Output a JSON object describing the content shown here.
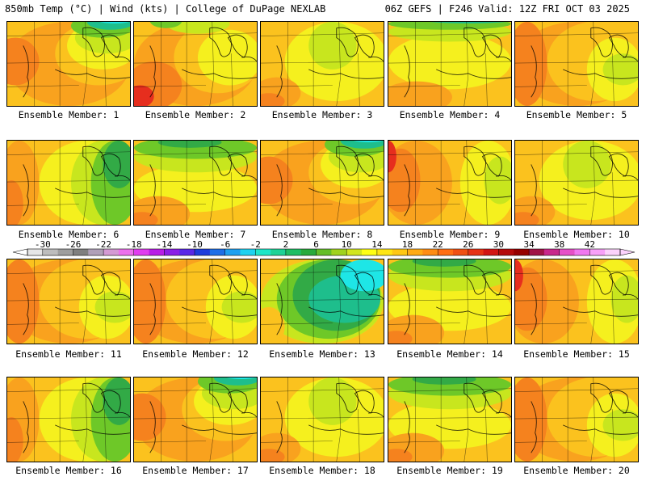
{
  "header": {
    "left": "850mb Temp (°C) | Wind (kts) | College of DuPage NEXLAB",
    "right": "06Z GEFS | F246 Valid: 12Z FRI OCT 03 2025"
  },
  "panels": [
    {
      "label": "Ensemble Member: 1",
      "theme": "coolNE"
    },
    {
      "label": "Ensemble Member: 2",
      "theme": "hotSW"
    },
    {
      "label": "Ensemble Member: 3",
      "theme": "mild"
    },
    {
      "label": "Ensemble Member: 4",
      "theme": "coolN"
    },
    {
      "label": "Ensemble Member: 5",
      "theme": "warmW"
    },
    {
      "label": "Ensemble Member: 6",
      "theme": "greenE"
    },
    {
      "label": "Ensemble Member: 7",
      "theme": "greenN"
    },
    {
      "label": "Ensemble Member: 8",
      "theme": "coolNE"
    },
    {
      "label": "Ensemble Member: 9",
      "theme": "hotW"
    },
    {
      "label": "Ensemble Member: 10",
      "theme": "mild"
    },
    {
      "label": "Ensemble Member: 11",
      "theme": "warmW"
    },
    {
      "label": "Ensemble Member: 12",
      "theme": "warmW"
    },
    {
      "label": "Ensemble Member: 13",
      "theme": "coolCenter"
    },
    {
      "label": "Ensemble Member: 14",
      "theme": "greenN"
    },
    {
      "label": "Ensemble Member: 15",
      "theme": "hotW"
    },
    {
      "label": "Ensemble Member: 16",
      "theme": "greenE"
    },
    {
      "label": "Ensemble Member: 17",
      "theme": "coolNE"
    },
    {
      "label": "Ensemble Member: 18",
      "theme": "mild"
    },
    {
      "label": "Ensemble Member: 19",
      "theme": "greenN"
    },
    {
      "label": "Ensemble Member: 20",
      "theme": "warmW"
    }
  ],
  "colorbar": {
    "tick_labels": [
      "-30",
      "-26",
      "-22",
      "-18",
      "-14",
      "-10",
      "-6",
      "-2",
      "2",
      "6",
      "10",
      "14",
      "18",
      "22",
      "26",
      "30",
      "34",
      "38",
      "42"
    ],
    "colors": [
      "#e6e6e6",
      "#bdbdbd",
      "#9e9e9e",
      "#7f7f7f",
      "#b0a0b8",
      "#d49ad4",
      "#ec70ec",
      "#e03cf0",
      "#b81ee6",
      "#8a1ee6",
      "#5a28e6",
      "#1e3cdc",
      "#1e6ee6",
      "#1ea0f0",
      "#1ed2f0",
      "#1ee6c8",
      "#1ed296",
      "#1ebe64",
      "#28aa3c",
      "#64be28",
      "#a0d21e",
      "#d2e61e",
      "#ffff14",
      "#ffe614",
      "#ffc814",
      "#ffaa14",
      "#ff8c14",
      "#ff6e14",
      "#f05014",
      "#e63214",
      "#d21414",
      "#b40a0a",
      "#960000",
      "#a01446",
      "#c8288c",
      "#e650c8",
      "#f078f0",
      "#f8a0f8",
      "#fcd2fc"
    ]
  },
  "palette": {
    "red": "#e62e1e",
    "orange": "#f5821e",
    "lightorange": "#f9a21e",
    "amber": "#fbc21e",
    "yellow": "#f5f01e",
    "yellowgreen": "#c8e61e",
    "green": "#6ec828",
    "darkgreen": "#32aa46",
    "teal": "#1ebe8c",
    "cyan": "#1ee6e6"
  }
}
